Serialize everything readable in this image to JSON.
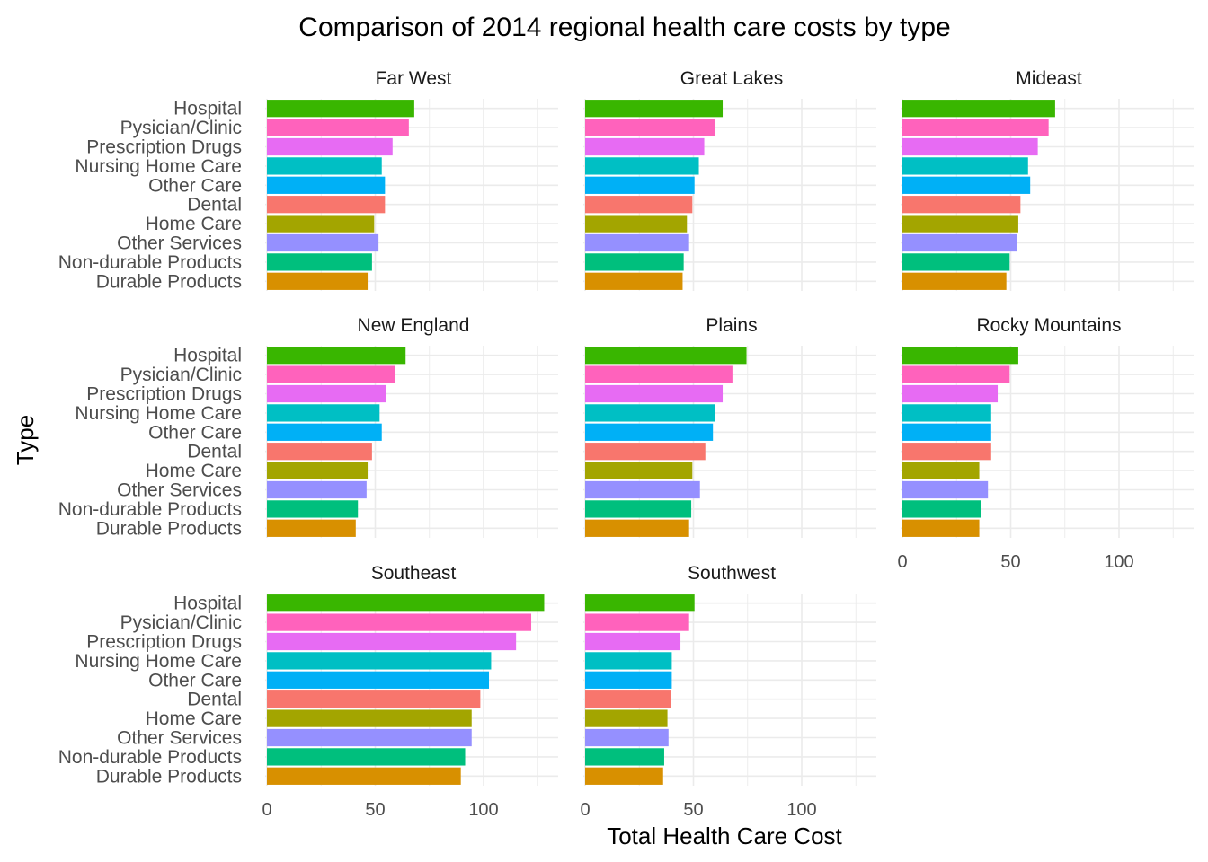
{
  "chart_data": {
    "type": "bar",
    "orientation": "horizontal",
    "facet": "region",
    "title": "Comparison of 2014 regional health care costs by type",
    "xlabel": "Total Health Care Cost",
    "ylabel": "Type",
    "xlim": [
      0,
      130
    ],
    "xticks": [
      0,
      50,
      100
    ],
    "grid": true,
    "legend": "none",
    "categories": [
      "Hospital",
      "Pysician/Clinic",
      "Prescription Drugs",
      "Nursing Home Care",
      "Other Care",
      "Dental",
      "Home Care",
      "Other Services",
      "Non-durable Products",
      "Durable Products"
    ],
    "category_colors": [
      "#39B600",
      "#FF62BC",
      "#E76BF3",
      "#00BFC4",
      "#00B0F6",
      "#F8766D",
      "#A3A500",
      "#9590FF",
      "#00BF7D",
      "#D89000"
    ],
    "panels": [
      {
        "region": "Far West",
        "values": [
          68,
          65.5,
          58,
          53,
          54.5,
          54.5,
          49.5,
          51.5,
          48.5,
          46.5
        ]
      },
      {
        "region": "Great Lakes",
        "values": [
          63.5,
          60,
          55,
          52.5,
          50.5,
          49.5,
          47,
          48,
          45.5,
          45
        ]
      },
      {
        "region": "Mideast",
        "values": [
          70.5,
          67.5,
          62.5,
          58,
          59,
          54.5,
          53.5,
          53,
          49.5,
          48
        ]
      },
      {
        "region": "New England",
        "values": [
          64,
          59,
          55,
          52,
          53,
          48.5,
          46.5,
          46,
          42,
          41
        ]
      },
      {
        "region": "Plains",
        "values": [
          74.5,
          68,
          63.5,
          60,
          59,
          55.5,
          49.5,
          53,
          49,
          48
        ]
      },
      {
        "region": "Rocky Mountains",
        "values": [
          53.5,
          49.5,
          44,
          41,
          41,
          41,
          35.5,
          39.5,
          36.5,
          35.5
        ]
      },
      {
        "region": "Southeast",
        "values": [
          128,
          122,
          115,
          103.5,
          102.5,
          98.5,
          94.5,
          94.5,
          91.5,
          89.5
        ]
      },
      {
        "region": "Southwest",
        "values": [
          50.5,
          48,
          44,
          40,
          40,
          39.5,
          38,
          38.5,
          36.5,
          36
        ]
      }
    ]
  }
}
